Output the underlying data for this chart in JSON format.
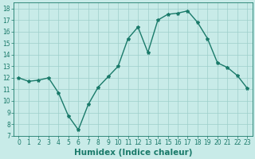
{
  "x": [
    0,
    1,
    2,
    3,
    4,
    5,
    6,
    7,
    8,
    9,
    10,
    11,
    12,
    13,
    14,
    15,
    16,
    17,
    18,
    19,
    20,
    21,
    22,
    23
  ],
  "y": [
    12.0,
    11.7,
    11.8,
    12.0,
    10.7,
    8.7,
    7.5,
    9.7,
    11.2,
    12.1,
    13.0,
    15.4,
    16.4,
    14.2,
    17.0,
    17.5,
    17.6,
    17.8,
    16.8,
    15.4,
    13.3,
    12.9,
    12.2,
    11.1
  ],
  "line_color": "#1a7a6a",
  "marker": "*",
  "marker_size": 3,
  "bg_color": "#c8ebe8",
  "grid_color": "#9dcfca",
  "xlabel": "Humidex (Indice chaleur)",
  "ylim": [
    7,
    18.5
  ],
  "xlim": [
    -0.5,
    23.5
  ],
  "yticks": [
    7,
    8,
    9,
    10,
    11,
    12,
    13,
    14,
    15,
    16,
    17,
    18
  ],
  "xticks": [
    0,
    1,
    2,
    3,
    4,
    5,
    6,
    7,
    8,
    9,
    10,
    11,
    12,
    13,
    14,
    15,
    16,
    17,
    18,
    19,
    20,
    21,
    22,
    23
  ],
  "tick_label_fontsize": 5.5,
  "xlabel_fontsize": 7.5,
  "line_width": 1.0
}
